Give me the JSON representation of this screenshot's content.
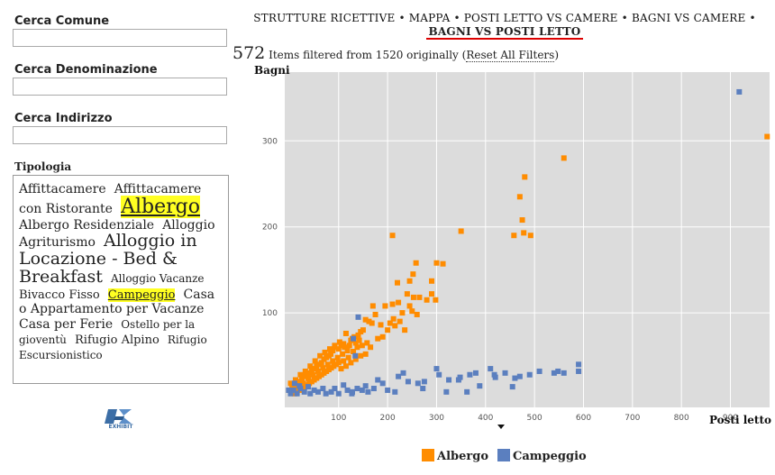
{
  "facets": {
    "comune": {
      "label": "Cerca Comune",
      "value": ""
    },
    "denominazione": {
      "label": "Cerca Denominazione",
      "value": ""
    },
    "indirizzo": {
      "label": "Cerca Indirizzo",
      "value": ""
    },
    "tipologia": {
      "label": "Tipologia",
      "tags": [
        {
          "text": "Affittacamere",
          "size": 14,
          "selected": false
        },
        {
          "text": "Affittacamere con Ristorante",
          "size": 14,
          "selected": false
        },
        {
          "text": "Albergo",
          "size": 22,
          "selected": true
        },
        {
          "text": "Albergo Residenziale",
          "size": 14,
          "selected": false
        },
        {
          "text": "Alloggio Agriturismo",
          "size": 14,
          "selected": false
        },
        {
          "text": "Alloggio in Locazione - Bed & Breakfast",
          "size": 19,
          "selected": false
        },
        {
          "text": "Alloggio Vacanze",
          "size": 12,
          "selected": false
        },
        {
          "text": "Bivacco Fisso",
          "size": 13,
          "selected": false
        },
        {
          "text": "Campeggio",
          "size": 13,
          "selected": true
        },
        {
          "text": "Casa o Appartamento per Vacanze",
          "size": 14,
          "selected": false
        },
        {
          "text": "Casa per Ferie",
          "size": 14,
          "selected": false
        },
        {
          "text": "Ostello per la gioventù",
          "size": 12,
          "selected": false
        },
        {
          "text": "Rifugio Alpino",
          "size": 13,
          "selected": false
        },
        {
          "text": "Rifugio Escursionistico",
          "size": 12,
          "selected": false
        }
      ]
    }
  },
  "logo": {
    "label": "EXHIBIT"
  },
  "nav": {
    "items": [
      "STRUTTURE RICETTIVE",
      "MAPPA",
      "POSTI LETTO VS CAMERE",
      "BAGNI VS CAMERE"
    ],
    "separator": " • ",
    "active": "BAGNI VS POSTI LETTO"
  },
  "status": {
    "count": "572",
    "text": "Items filtered from 1520 originally (",
    "reset": "Reset All Filters",
    "close": ")"
  },
  "colors": {
    "albergo": "#ff8c00",
    "campeggio": "#5b7fbf",
    "plot_bg": "#dcdcdc",
    "grid": "#ffffff"
  },
  "chart_data": {
    "type": "scatter",
    "xlabel": "Posti letto",
    "ylabel": "Bagni",
    "xlim": [
      -10,
      980
    ],
    "ylim": [
      -10,
      380
    ],
    "xticks": [
      100,
      200,
      300,
      400,
      500,
      600,
      700,
      800,
      900
    ],
    "yticks": [
      100,
      200,
      300
    ],
    "grid": true,
    "legend": "bottom",
    "series": [
      {
        "name": "Albergo",
        "color": "#ff8c00",
        "points": [
          [
            975,
            305
          ],
          [
            560,
            280
          ],
          [
            480,
            258
          ],
          [
            470,
            235
          ],
          [
            475,
            208
          ],
          [
            478,
            193
          ],
          [
            492,
            190
          ],
          [
            458,
            190
          ],
          [
            350,
            195
          ],
          [
            210,
            190
          ],
          [
            300,
            158
          ],
          [
            313,
            157
          ],
          [
            258,
            158
          ],
          [
            252,
            145
          ],
          [
            245,
            137
          ],
          [
            290,
            137
          ],
          [
            290,
            122
          ],
          [
            298,
            115
          ],
          [
            220,
            135
          ],
          [
            240,
            122
          ],
          [
            253,
            118
          ],
          [
            265,
            118
          ],
          [
            280,
            115
          ],
          [
            170,
            108
          ],
          [
            195,
            108
          ],
          [
            210,
            110
          ],
          [
            222,
            112
          ],
          [
            245,
            108
          ],
          [
            250,
            102
          ],
          [
            260,
            98
          ],
          [
            230,
            100
          ],
          [
            212,
            93
          ],
          [
            205,
            88
          ],
          [
            186,
            86
          ],
          [
            175,
            98
          ],
          [
            168,
            88
          ],
          [
            162,
            90
          ],
          [
            155,
            92
          ],
          [
            150,
            80
          ],
          [
            145,
            78
          ],
          [
            140,
            74
          ],
          [
            132,
            72
          ],
          [
            128,
            70
          ],
          [
            125,
            68
          ],
          [
            135,
            65
          ],
          [
            142,
            68
          ],
          [
            115,
            76
          ],
          [
            110,
            64
          ],
          [
            105,
            62
          ],
          [
            100,
            58
          ],
          [
            92,
            60
          ],
          [
            88,
            56
          ],
          [
            84,
            52
          ],
          [
            80,
            50
          ],
          [
            75,
            48
          ],
          [
            70,
            46
          ],
          [
            65,
            42
          ],
          [
            60,
            40
          ],
          [
            55,
            38
          ],
          [
            50,
            35
          ],
          [
            45,
            32
          ],
          [
            40,
            30
          ],
          [
            35,
            28
          ],
          [
            30,
            26
          ],
          [
            25,
            22
          ],
          [
            20,
            20
          ],
          [
            15,
            18
          ],
          [
            10,
            15
          ],
          [
            5,
            12
          ],
          [
            0,
            10
          ],
          [
            8,
            8
          ],
          [
            18,
            12
          ],
          [
            28,
            18
          ],
          [
            38,
            24
          ],
          [
            48,
            28
          ],
          [
            58,
            32
          ],
          [
            68,
            36
          ],
          [
            78,
            40
          ],
          [
            88,
            44
          ],
          [
            98,
            48
          ],
          [
            108,
            52
          ],
          [
            118,
            56
          ],
          [
            62,
            50
          ],
          [
            72,
            54
          ],
          [
            82,
            58
          ],
          [
            92,
            62
          ],
          [
            102,
            66
          ],
          [
            112,
            60
          ],
          [
            122,
            62
          ],
          [
            52,
            44
          ],
          [
            42,
            38
          ],
          [
            32,
            32
          ],
          [
            22,
            28
          ],
          [
            12,
            22
          ],
          [
            2,
            18
          ],
          [
            95,
            40
          ],
          [
            85,
            36
          ],
          [
            75,
            32
          ],
          [
            65,
            28
          ],
          [
            55,
            24
          ],
          [
            45,
            20
          ],
          [
            35,
            16
          ],
          [
            25,
            12
          ],
          [
            15,
            8
          ],
          [
            130,
            55
          ],
          [
            138,
            60
          ],
          [
            148,
            62
          ],
          [
            158,
            65
          ],
          [
            120,
            48
          ],
          [
            110,
            44
          ],
          [
            100,
            42
          ],
          [
            90,
            38
          ],
          [
            80,
            34
          ],
          [
            70,
            30
          ],
          [
            60,
            26
          ],
          [
            50,
            22
          ],
          [
            40,
            18
          ],
          [
            30,
            14
          ],
          [
            20,
            10
          ],
          [
            10,
            6
          ],
          [
            180,
            70
          ],
          [
            190,
            72
          ],
          [
            200,
            80
          ],
          [
            215,
            85
          ],
          [
            225,
            90
          ],
          [
            235,
            80
          ],
          [
            155,
            52
          ],
          [
            165,
            60
          ],
          [
            105,
            35
          ],
          [
            115,
            38
          ],
          [
            125,
            42
          ],
          [
            135,
            46
          ],
          [
            145,
            50
          ]
        ]
      },
      {
        "name": "Campeggio",
        "color": "#5b7fbf",
        "points": [
          [
            918,
            357
          ],
          [
            590,
            40
          ],
          [
            590,
            32
          ],
          [
            540,
            30
          ],
          [
            548,
            32
          ],
          [
            560,
            30
          ],
          [
            510,
            32
          ],
          [
            490,
            28
          ],
          [
            470,
            26
          ],
          [
            460,
            24
          ],
          [
            440,
            30
          ],
          [
            418,
            28
          ],
          [
            410,
            35
          ],
          [
            380,
            30
          ],
          [
            368,
            28
          ],
          [
            348,
            25
          ],
          [
            345,
            22
          ],
          [
            325,
            22
          ],
          [
            305,
            28
          ],
          [
            300,
            35
          ],
          [
            275,
            20
          ],
          [
            272,
            12
          ],
          [
            262,
            18
          ],
          [
            242,
            20
          ],
          [
            232,
            30
          ],
          [
            215,
            8
          ],
          [
            222,
            26
          ],
          [
            200,
            10
          ],
          [
            190,
            18
          ],
          [
            180,
            22
          ],
          [
            172,
            12
          ],
          [
            155,
            15
          ],
          [
            160,
            8
          ],
          [
            148,
            10
          ],
          [
            138,
            12
          ],
          [
            128,
            8
          ],
          [
            118,
            10
          ],
          [
            110,
            16
          ],
          [
            100,
            6
          ],
          [
            92,
            12
          ],
          [
            85,
            8
          ],
          [
            74,
            6
          ],
          [
            68,
            12
          ],
          [
            58,
            8
          ],
          [
            50,
            10
          ],
          [
            42,
            6
          ],
          [
            38,
            14
          ],
          [
            30,
            8
          ],
          [
            22,
            12
          ],
          [
            15,
            6
          ],
          [
            8,
            10
          ],
          [
            2,
            6
          ],
          [
            -2,
            10
          ],
          [
            10,
            18
          ],
          [
            20,
            15
          ],
          [
            134,
            50
          ],
          [
            140,
            95
          ],
          [
            127,
            6
          ],
          [
            320,
            8
          ],
          [
            362,
            8
          ],
          [
            388,
            15
          ],
          [
            455,
            14
          ],
          [
            420,
            25
          ],
          [
            130,
            70
          ]
        ]
      }
    ]
  }
}
